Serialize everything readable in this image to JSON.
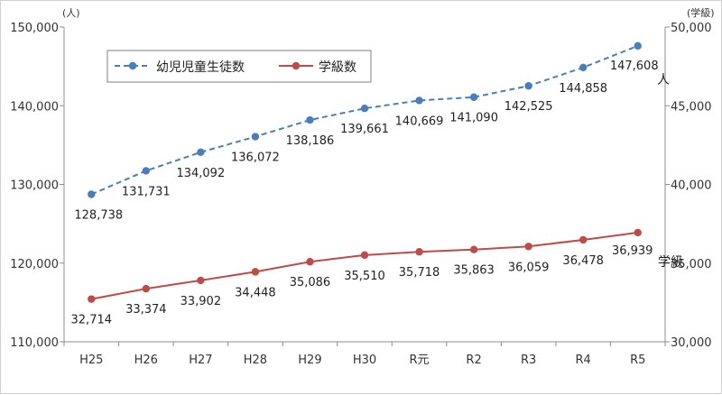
{
  "chart_data": {
    "type": "line",
    "categories": [
      "H25",
      "H26",
      "H27",
      "H28",
      "H29",
      "H30",
      "R元",
      "R2",
      "R3",
      "R4",
      "R5"
    ],
    "left_axis": {
      "unit": "(人)",
      "ylim": [
        110000,
        150000
      ],
      "ticks": [
        "110,000",
        "120,000",
        "130,000",
        "140,000",
        "150,000"
      ],
      "tick_values": [
        110000,
        120000,
        130000,
        140000,
        150000
      ]
    },
    "right_axis": {
      "unit": "(学級)",
      "ylim": [
        30000,
        50000
      ],
      "ticks": [
        "30,000",
        "35,000",
        "40,000",
        "45,000",
        "50,000"
      ],
      "tick_values": [
        30000,
        35000,
        40000,
        45000,
        50000
      ]
    },
    "series": [
      {
        "name": "幼児児童生徒数",
        "axis": "left",
        "style": "dashed",
        "color": "#4a7ebb",
        "end_label": "人",
        "values": [
          128738,
          131731,
          134092,
          136072,
          138186,
          139661,
          140669,
          141090,
          142525,
          144858,
          147608
        ],
        "labels": [
          "128,738",
          "131,731",
          "134,092",
          "136,072",
          "138,186",
          "139,661",
          "140,669",
          "141,090",
          "142,525",
          "144,858",
          "147,608"
        ]
      },
      {
        "name": "学級数",
        "axis": "right",
        "style": "solid",
        "color": "#be4b48",
        "end_label": "学級",
        "values": [
          32714,
          33374,
          33902,
          34448,
          35086,
          35510,
          35718,
          35863,
          36059,
          36478,
          36939
        ],
        "labels": [
          "32,714",
          "33,374",
          "33,902",
          "34,448",
          "35,086",
          "35,510",
          "35,718",
          "35,863",
          "36,059",
          "36,478",
          "36,939"
        ]
      }
    ]
  }
}
